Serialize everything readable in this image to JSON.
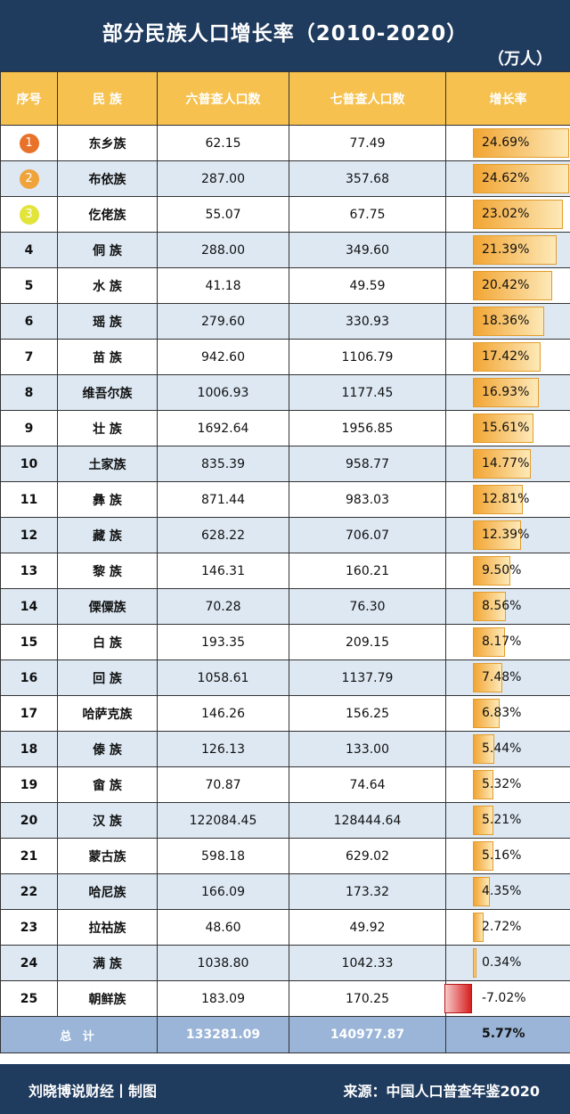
{
  "title": "部分民族人口增长率（2010-2020）",
  "unit": "（万人）",
  "columns": {
    "rank": "序号",
    "ethnicity": "民 族",
    "census6": "六普查人口数",
    "census7": "七普查人口数",
    "growth": "增长率"
  },
  "medal_colors": [
    "#e8722a",
    "#efa33a",
    "#e2e43a"
  ],
  "rows": [
    {
      "rank": "1",
      "ethnicity": "东乡族",
      "census6": "62.15",
      "census7": "77.49",
      "growth": "24.69%",
      "growth_value": 24.69
    },
    {
      "rank": "2",
      "ethnicity": "布依族",
      "census6": "287.00",
      "census7": "357.68",
      "growth": "24.62%",
      "growth_value": 24.62
    },
    {
      "rank": "3",
      "ethnicity": "仡佬族",
      "census6": "55.07",
      "census7": "67.75",
      "growth": "23.02%",
      "growth_value": 23.02
    },
    {
      "rank": "4",
      "ethnicity": "侗 族",
      "census6": "288.00",
      "census7": "349.60",
      "growth": "21.39%",
      "growth_value": 21.39
    },
    {
      "rank": "5",
      "ethnicity": "水 族",
      "census6": "41.18",
      "census7": "49.59",
      "growth": "20.42%",
      "growth_value": 20.42
    },
    {
      "rank": "6",
      "ethnicity": "瑶 族",
      "census6": "279.60",
      "census7": "330.93",
      "growth": "18.36%",
      "growth_value": 18.36
    },
    {
      "rank": "7",
      "ethnicity": "苗 族",
      "census6": "942.60",
      "census7": "1106.79",
      "growth": "17.42%",
      "growth_value": 17.42
    },
    {
      "rank": "8",
      "ethnicity": "维吾尔族",
      "census6": "1006.93",
      "census7": "1177.45",
      "growth": "16.93%",
      "growth_value": 16.93
    },
    {
      "rank": "9",
      "ethnicity": "壮 族",
      "census6": "1692.64",
      "census7": "1956.85",
      "growth": "15.61%",
      "growth_value": 15.61
    },
    {
      "rank": "10",
      "ethnicity": "土家族",
      "census6": "835.39",
      "census7": "958.77",
      "growth": "14.77%",
      "growth_value": 14.77
    },
    {
      "rank": "11",
      "ethnicity": "彝 族",
      "census6": "871.44",
      "census7": "983.03",
      "growth": "12.81%",
      "growth_value": 12.81
    },
    {
      "rank": "12",
      "ethnicity": "藏 族",
      "census6": "628.22",
      "census7": "706.07",
      "growth": "12.39%",
      "growth_value": 12.39
    },
    {
      "rank": "13",
      "ethnicity": "黎 族",
      "census6": "146.31",
      "census7": "160.21",
      "growth": "9.50%",
      "growth_value": 9.5
    },
    {
      "rank": "14",
      "ethnicity": "傈僳族",
      "census6": "70.28",
      "census7": "76.30",
      "growth": "8.56%",
      "growth_value": 8.56
    },
    {
      "rank": "15",
      "ethnicity": "白 族",
      "census6": "193.35",
      "census7": "209.15",
      "growth": "8.17%",
      "growth_value": 8.17
    },
    {
      "rank": "16",
      "ethnicity": "回 族",
      "census6": "1058.61",
      "census7": "1137.79",
      "growth": "7.48%",
      "growth_value": 7.48
    },
    {
      "rank": "17",
      "ethnicity": "哈萨克族",
      "census6": "146.26",
      "census7": "156.25",
      "growth": "6.83%",
      "growth_value": 6.83
    },
    {
      "rank": "18",
      "ethnicity": "傣 族",
      "census6": "126.13",
      "census7": "133.00",
      "growth": "5.44%",
      "growth_value": 5.44
    },
    {
      "rank": "19",
      "ethnicity": "畲 族",
      "census6": "70.87",
      "census7": "74.64",
      "growth": "5.32%",
      "growth_value": 5.32
    },
    {
      "rank": "20",
      "ethnicity": "汉 族",
      "census6": "122084.45",
      "census7": "128444.64",
      "growth": "5.21%",
      "growth_value": 5.21
    },
    {
      "rank": "21",
      "ethnicity": "蒙古族",
      "census6": "598.18",
      "census7": "629.02",
      "growth": "5.16%",
      "growth_value": 5.16
    },
    {
      "rank": "22",
      "ethnicity": "哈尼族",
      "census6": "166.09",
      "census7": "173.32",
      "growth": "4.35%",
      "growth_value": 4.35
    },
    {
      "rank": "23",
      "ethnicity": "拉祜族",
      "census6": "48.60",
      "census7": "49.92",
      "growth": "2.72%",
      "growth_value": 2.72
    },
    {
      "rank": "24",
      "ethnicity": "满 族",
      "census6": "1038.80",
      "census7": "1042.33",
      "growth": "0.34%",
      "growth_value": 0.34
    },
    {
      "rank": "25",
      "ethnicity": "朝鲜族",
      "census6": "183.09",
      "census7": "170.25",
      "growth": "-7.02%",
      "growth_value": -7.02
    }
  ],
  "total": {
    "label": "总 计",
    "census6": "133281.09",
    "census7": "140977.87",
    "growth": "5.77%"
  },
  "footer": {
    "credit": "刘晓博说财经丨制图",
    "source": "来源：中国人口普查年鉴2020"
  },
  "watermark": "刘晓博说财经"
}
